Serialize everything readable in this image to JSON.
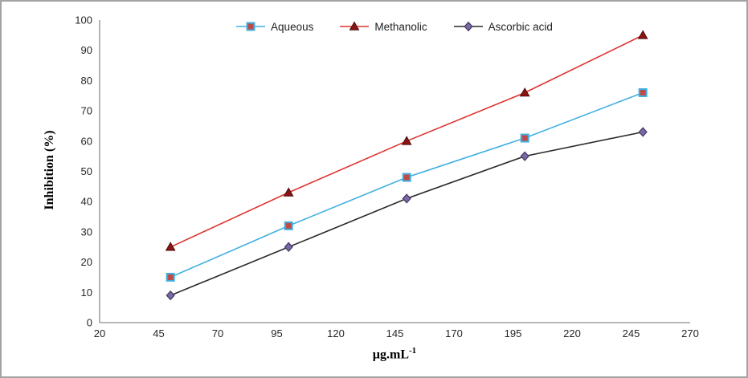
{
  "figure": {
    "background": "#ffffff",
    "border_color": "#a3a3a3"
  },
  "chart_data": {
    "type": "line",
    "title": "",
    "x": [
      50,
      100,
      150,
      200,
      250
    ],
    "series": [
      {
        "name": "Aqueous",
        "values": [
          15,
          32,
          48,
          61,
          76
        ],
        "line_color": "#41b0e2",
        "marker": "square",
        "marker_fill": "#bf4b47",
        "marker_stroke": "#41b0e2"
      },
      {
        "name": "Methanolic",
        "values": [
          25,
          43,
          60,
          76,
          95
        ],
        "line_color": "#dd3330",
        "marker": "triangle",
        "marker_fill": "#8e1414",
        "marker_stroke": "#4a0a0a"
      },
      {
        "name": "Ascorbic acid",
        "values": [
          9,
          25,
          41,
          55,
          63
        ],
        "line_color": "#2a2a2a",
        "marker": "diamond",
        "marker_fill": "#7a67a8",
        "marker_stroke": "#453960"
      }
    ],
    "xlabel": "µg.mL⁻¹",
    "xlabel_base": "µg.mL",
    "xlabel_sup": "-1",
    "ylabel": "Inhibition (%)",
    "x_ticks": [
      20,
      45,
      70,
      95,
      120,
      145,
      170,
      195,
      220,
      245,
      270
    ],
    "y_ticks": [
      0,
      10,
      20,
      30,
      40,
      50,
      60,
      70,
      80,
      90,
      100
    ],
    "xlim": [
      20,
      270
    ],
    "ylim": [
      0,
      100
    ],
    "grid": false,
    "legend_position": "top-center",
    "axis_color": "#8c8c8c",
    "tick_label_color": "#262626"
  }
}
